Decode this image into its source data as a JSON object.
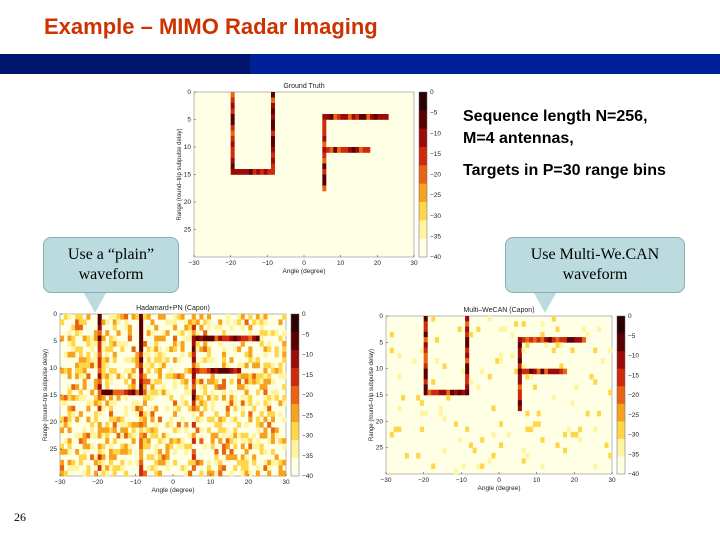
{
  "slide": {
    "title": "Example – MIMO Radar Imaging",
    "page_number": "26"
  },
  "notes": {
    "line1": "Sequence length N=256,",
    "line2": "M=4 antennas,",
    "line3": "Targets in P=30 range bins"
  },
  "callouts": {
    "left": {
      "line1": "Use a “plain”",
      "line2": "waveform"
    },
    "right": {
      "line1": "Use Multi-We.CAN",
      "line2": "waveform"
    }
  },
  "plots": [
    {
      "title": "Ground Truth",
      "xlabel": "Angle (degree)",
      "ylabel": "Range (round–trip subpulse delay)",
      "xticks": [
        "−30",
        "−20",
        "−10",
        "0",
        "10",
        "20",
        "30"
      ],
      "yticks": [
        "0",
        "5",
        "10",
        "15",
        "20",
        "25"
      ],
      "cticks": [
        "0",
        "−5",
        "−10",
        "−15",
        "−20",
        "−25",
        "−30",
        "−35",
        "−40"
      ]
    },
    {
      "title": "Hadamard+PN (Capon)",
      "xlabel": "Angle (degree)",
      "ylabel": "Range (round–trip subpulse delay)",
      "xticks": [
        "−30",
        "−20",
        "−10",
        "0",
        "10",
        "20",
        "30"
      ],
      "yticks": [
        "0",
        "5",
        "10",
        "15",
        "20",
        "25"
      ],
      "cticks": [
        "0",
        "−5",
        "−10",
        "−15",
        "−20",
        "−25",
        "−30",
        "−35",
        "−40"
      ]
    },
    {
      "title": "Multi–WeCAN (Capon)",
      "xlabel": "Angle (degree)",
      "ylabel": "Range (round–trip subpulse delay)",
      "xticks": [
        "−30",
        "−20",
        "−10",
        "0",
        "10",
        "20",
        "30"
      ],
      "yticks": [
        "0",
        "5",
        "10",
        "15",
        "20",
        "25"
      ],
      "cticks": [
        "0",
        "−5",
        "−10",
        "−15",
        "−20",
        "−25",
        "−30",
        "−35",
        "−40"
      ]
    }
  ],
  "colors": {
    "title": "#cc3300",
    "band": "#00209a",
    "callout_fill": "#bcdbdf",
    "colormap": [
      "#ffffe6",
      "#fff5a0",
      "#ffd64a",
      "#f7a21f",
      "#e86412",
      "#cf2a0d",
      "#9d0a0a",
      "#5a0000",
      "#2a0000"
    ]
  }
}
